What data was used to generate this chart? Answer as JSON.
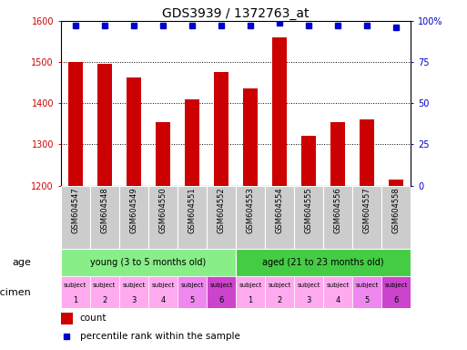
{
  "title": "GDS3939 / 1372763_at",
  "samples": [
    "GSM604547",
    "GSM604548",
    "GSM604549",
    "GSM604550",
    "GSM604551",
    "GSM604552",
    "GSM604553",
    "GSM604554",
    "GSM604555",
    "GSM604556",
    "GSM604557",
    "GSM604558"
  ],
  "counts": [
    1500,
    1495,
    1462,
    1355,
    1410,
    1475,
    1435,
    1560,
    1320,
    1355,
    1360,
    1215
  ],
  "percentiles": [
    97,
    97,
    97,
    97,
    97,
    97,
    97,
    99,
    97,
    97,
    97,
    96
  ],
  "ylim_left": [
    1200,
    1600
  ],
  "ylim_right": [
    0,
    100
  ],
  "yticks_left": [
    1200,
    1300,
    1400,
    1500,
    1600
  ],
  "yticks_right": [
    0,
    25,
    50,
    75,
    100
  ],
  "bar_color": "#cc0000",
  "dot_color": "#0000cc",
  "age_group_young_label": "young (3 to 5 months old)",
  "age_group_aged_label": "aged (21 to 23 months old)",
  "age_group_young_color": "#88ee88",
  "age_group_aged_color": "#44cc44",
  "specimen_colors": [
    "#ffaaee",
    "#ffaaee",
    "#ffaaee",
    "#ffaaee",
    "#ee88ee",
    "#cc44cc",
    "#ffaaee",
    "#ffaaee",
    "#ffaaee",
    "#ffaaee",
    "#ee88ee",
    "#cc44cc"
  ],
  "specimen_numbers": [
    1,
    2,
    3,
    4,
    5,
    6,
    1,
    2,
    3,
    4,
    5,
    6
  ],
  "sample_bg_color": "#cccccc",
  "xlabel_age": "age",
  "xlabel_specimen": "specimen",
  "legend_count": "count",
  "legend_percentile": "percentile rank within the sample",
  "title_fontsize": 10,
  "tick_fontsize": 7,
  "label_fontsize": 8
}
